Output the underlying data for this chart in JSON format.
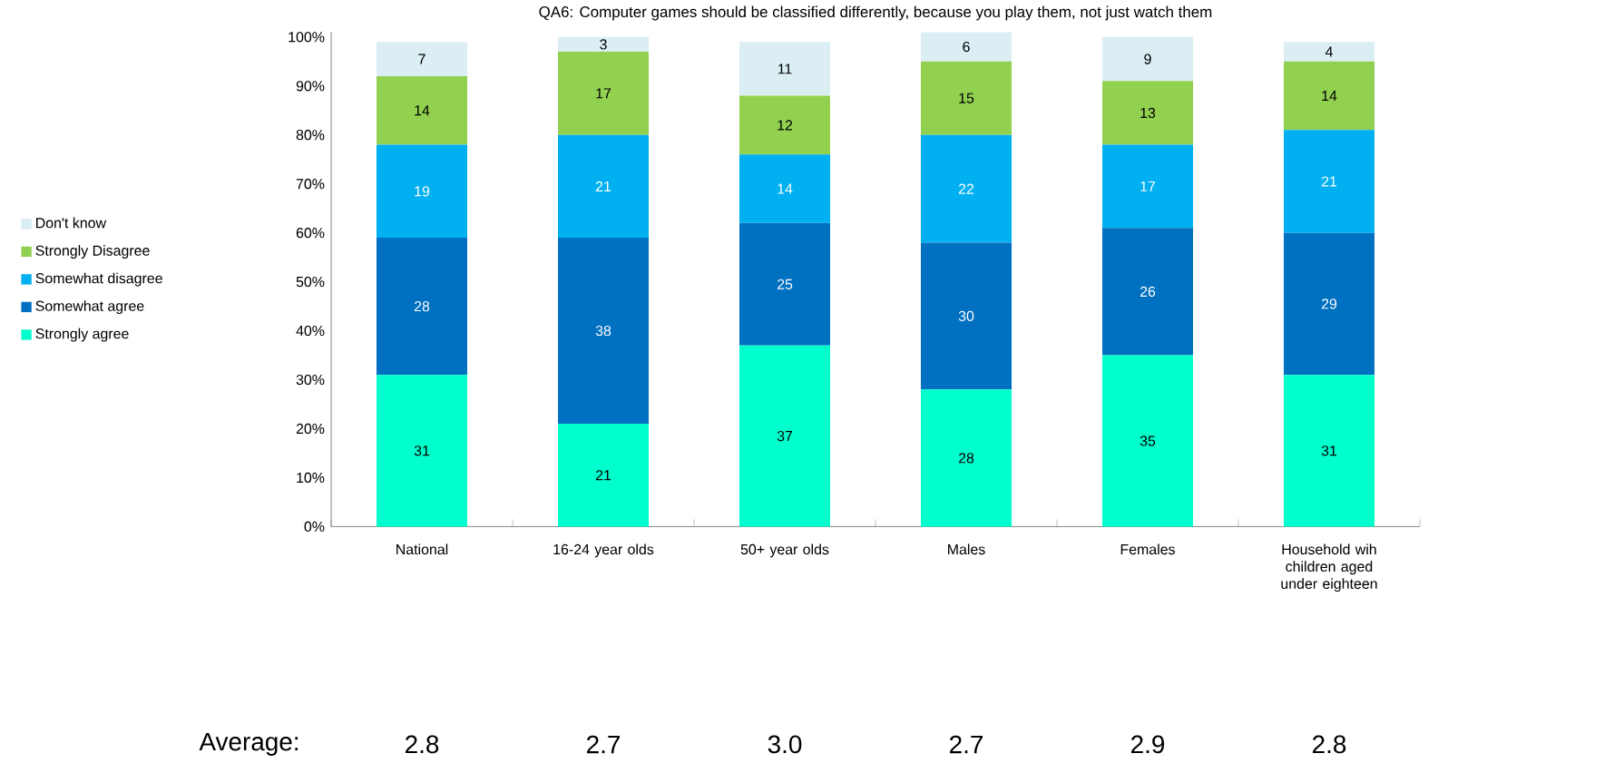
{
  "chart_data": {
    "type": "bar",
    "stacked": true,
    "title": "QA6: Computer games should be classified differently, because you play them, not just watch them",
    "categories": [
      "National",
      "16-24 year olds",
      "50+ year olds",
      "Males",
      "Females",
      "Household wih children aged under eighteen"
    ],
    "series": [
      {
        "name": "Strongly agree",
        "color": "#00ffcc",
        "values": [
          31,
          21,
          37,
          28,
          35,
          31
        ]
      },
      {
        "name": "Somewhat agree",
        "color": "#0070c0",
        "values": [
          28,
          38,
          25,
          30,
          26,
          29
        ]
      },
      {
        "name": "Somewhat disagree",
        "color": "#00b0f0",
        "values": [
          19,
          21,
          14,
          22,
          17,
          21
        ]
      },
      {
        "name": "Strongly Disagree",
        "color": "#92d050",
        "values": [
          14,
          17,
          12,
          15,
          13,
          14
        ]
      },
      {
        "name": "Don't know",
        "color": "#daeef3",
        "values": [
          7,
          3,
          11,
          6,
          9,
          4
        ]
      }
    ],
    "ylim": [
      0,
      101
    ],
    "yticks": [
      {
        "value": 0,
        "label": "0%"
      },
      {
        "value": 10,
        "label": "10%"
      },
      {
        "value": 20,
        "label": "20%"
      },
      {
        "value": 30,
        "label": "30%"
      },
      {
        "value": 40,
        "label": "40%"
      },
      {
        "value": 50,
        "label": "50%"
      },
      {
        "value": 60,
        "label": "60%"
      },
      {
        "value": 70,
        "label": "70%"
      },
      {
        "value": 80,
        "label": "80%"
      },
      {
        "value": 90,
        "label": "90%"
      },
      {
        "value": 100,
        "label": "100%"
      }
    ],
    "data_labels": true,
    "legend": "left",
    "grid": false,
    "annotations": [
      "Average:",
      "2.8",
      "2.7",
      "3.0",
      "2.7",
      "2.9",
      "2.8"
    ]
  }
}
